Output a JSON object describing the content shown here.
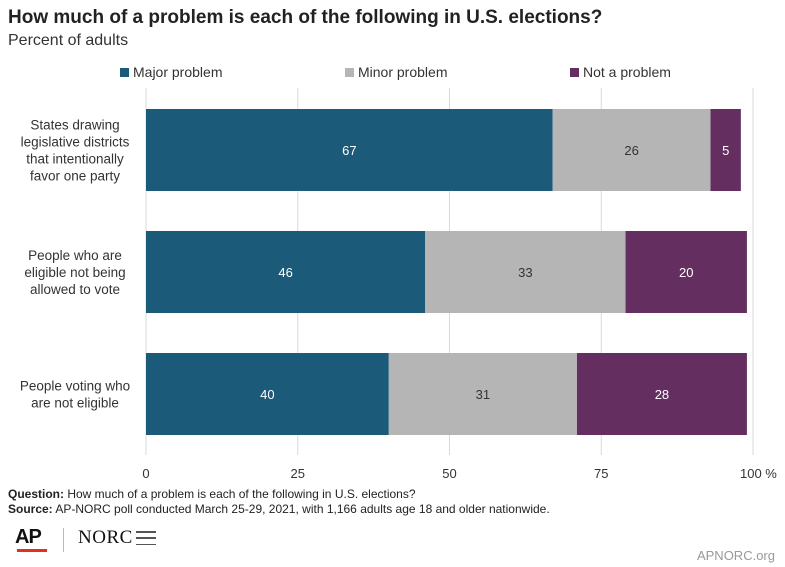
{
  "title": "How much of a problem is each of the following in U.S. elections?",
  "subtitle": "Percent of adults",
  "colors": {
    "major": "#1b5a78",
    "minor": "#b5b5b5",
    "not": "#642f60",
    "grid": "#d9d9d9"
  },
  "chart_data": {
    "type": "bar",
    "orientation": "horizontal",
    "stacked": true,
    "categories": [
      [
        "States drawing",
        "legislative districts",
        "that intentionally",
        "favor one party"
      ],
      [
        "People who are",
        "eligible not being",
        "allowed to vote"
      ],
      [
        "People voting who",
        "are not eligible"
      ]
    ],
    "series": [
      {
        "name": "Major problem",
        "color": "#1b5a78",
        "values": [
          67,
          46,
          40
        ]
      },
      {
        "name": "Minor problem",
        "color": "#b5b5b5",
        "values": [
          26,
          33,
          31
        ]
      },
      {
        "name": "Not a problem",
        "color": "#642f60",
        "values": [
          5,
          20,
          28
        ]
      }
    ],
    "xlim": [
      0,
      100
    ],
    "xticks": [
      "0",
      "25",
      "50",
      "75",
      "100 %"
    ],
    "xtick_values": [
      0,
      25,
      50,
      75,
      100
    ],
    "grid": true,
    "legend": "top"
  },
  "footer": {
    "question_label": "Question:",
    "question_text": "How much of a problem is each of the following in U.S. elections?",
    "source_label": "Source:",
    "source_text": "AP-NORC poll conducted March 25-29, 2021, with 1,166 adults age 18 and older nationwide.",
    "logo_ap": "AP",
    "logo_norc": "NORC",
    "site": "APNORC.org"
  }
}
